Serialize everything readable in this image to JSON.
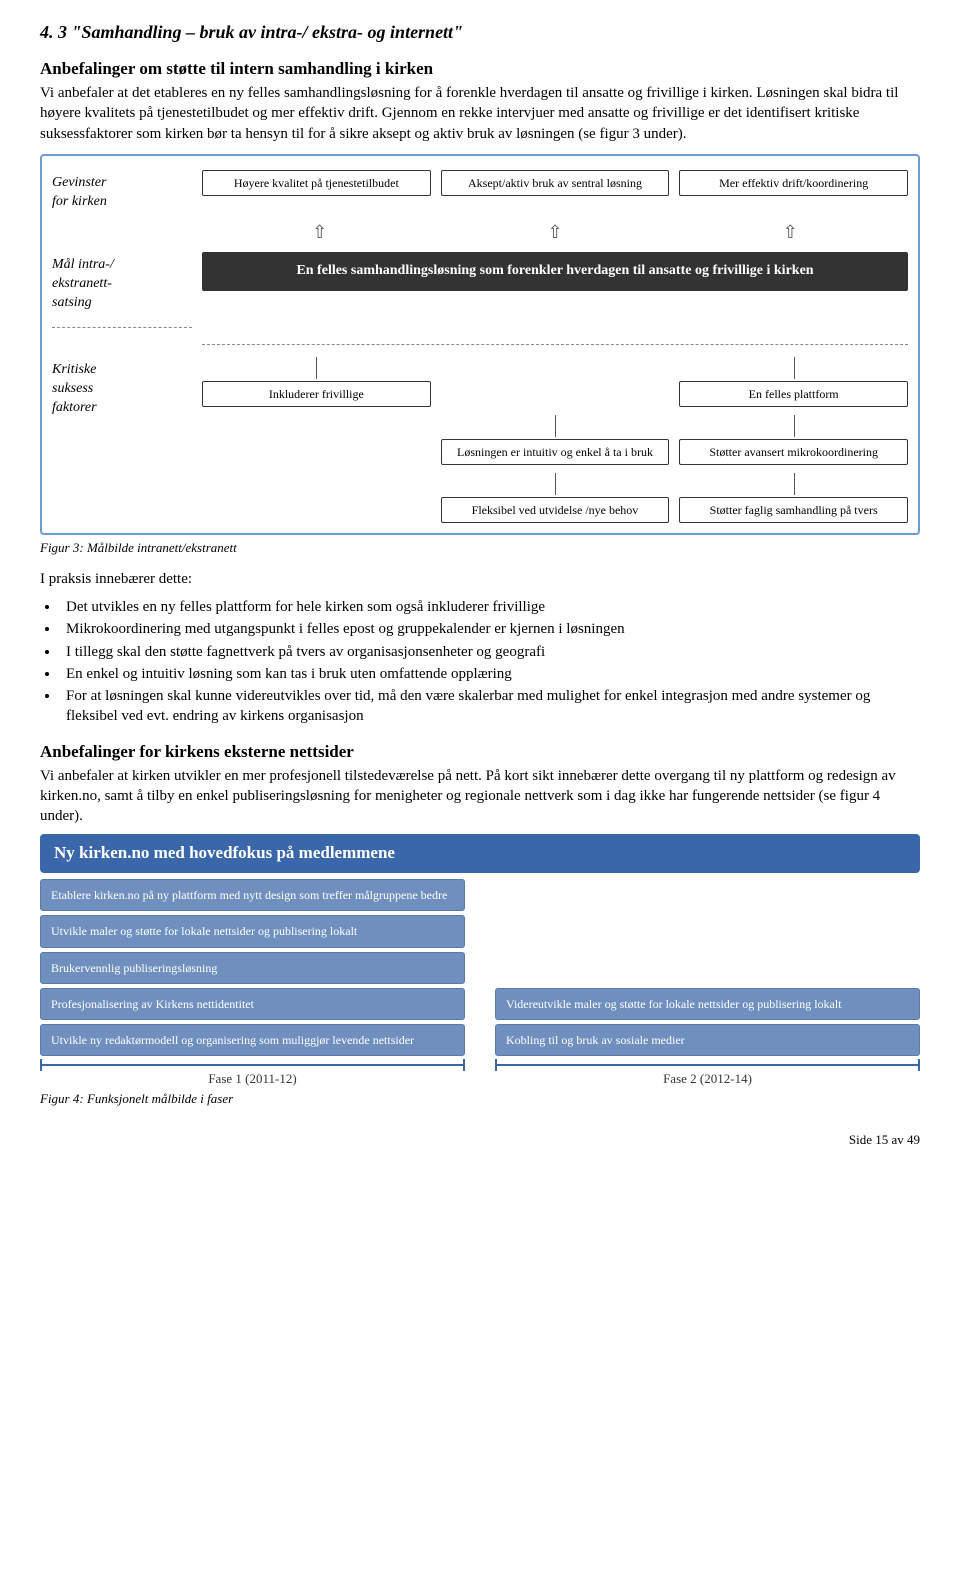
{
  "section": {
    "number_title": "4. 3 \"Samhandling – bruk av intra-/ ekstra- og internett\"",
    "anbef_heading": "Anbefalinger om støtte til intern samhandling i kirken",
    "intro_para": "Vi anbefaler at det etableres en ny felles samhandlingsløsning for å forenkle hverdagen til ansatte og frivillige i kirken. Løsningen skal bidra til høyere kvalitets på tjenestetilbudet og mer effektiv drift. Gjennom en rekke intervjuer med ansatte og frivillige er det identifisert kritiske suksessfaktorer som kirken bør ta hensyn til for å sikre aksept og aktiv bruk av løsningen (se figur 3 under)."
  },
  "fig3": {
    "row_labels": {
      "gevinster": "Gevinster\nfor kirken",
      "mal": "Mål intra-/\nekstranett-\nsatsing",
      "ksf": "Kritiske\nsuksess\nfaktorer"
    },
    "gevinster": [
      "Høyere kvalitet på tjenestetilbudet",
      "Aksept/aktiv bruk av sentral løsning",
      "Mer effektiv drift/koordinering"
    ],
    "goal": "En felles samhandlingsløsning som forenkler hverdagen til ansatte og frivillige i kirken",
    "ksf": [
      "Inkluderer frivillige",
      "En felles plattform",
      "Løsningen er intuitiv og enkel å ta i bruk",
      "Støtter avansert mikrokoordinering",
      "Fleksibel ved utvidelse /nye behov",
      "Støtter faglig samhandling på tvers"
    ],
    "caption": "Figur 3: Målbilde intranett/ekstranett"
  },
  "praksis": {
    "lead": "I praksis innebærer dette:",
    "items": [
      "Det utvikles en ny felles plattform for hele kirken som også inkluderer frivillige",
      "Mikrokoordinering med utgangspunkt i felles epost og gruppekalender er kjernen i løsningen",
      "I tillegg skal den støtte fagnettverk på tvers av organisasjonsenheter og geografi",
      "En enkel og intuitiv løsning som kan tas i bruk uten omfattende opplæring",
      "For at løsningen skal kunne videreutvikles over tid, må den være skalerbar med mulighet for enkel integrasjon med andre systemer og fleksibel ved evt. endring av kirkens organisasjon"
    ]
  },
  "ext": {
    "heading": "Anbefalinger for kirkens eksterne nettsider",
    "para": "Vi anbefaler at kirken utvikler en mer profesjonell tilstedeværelse på nett. På kort sikt innebærer dette overgang til ny plattform og redesign av kirken.no, samt å tilby en enkel publiseringsløsning for menigheter og regionale nettverk som i dag ikke har fungerende nettsider (se figur 4 under)."
  },
  "fig4": {
    "title": "Ny kirken.no med hovedfokus på medlemmene",
    "phase1": [
      "Etablere kirken.no på ny plattform med nytt design som treffer målgruppene bedre",
      "Utvikle maler og støtte for lokale nettsider og publisering lokalt",
      "Brukervennlig publiseringsløsning",
      "Profesjonalisering av Kirkens nettidentitet",
      "Utvikle ny redaktørmodell og organisering som muliggjør levende nettsider"
    ],
    "phase2": [
      "Videreutvikle maler og støtte for lokale nettsider og publisering lokalt",
      "Kobling til og bruk av sosiale medier"
    ],
    "phase_labels": [
      "Fase 1 (2011-12)",
      "Fase 2 (2012-14)"
    ],
    "caption": "Figur 4: Funksjonelt målbilde  i faser"
  },
  "footer": "Side 15 av 49"
}
